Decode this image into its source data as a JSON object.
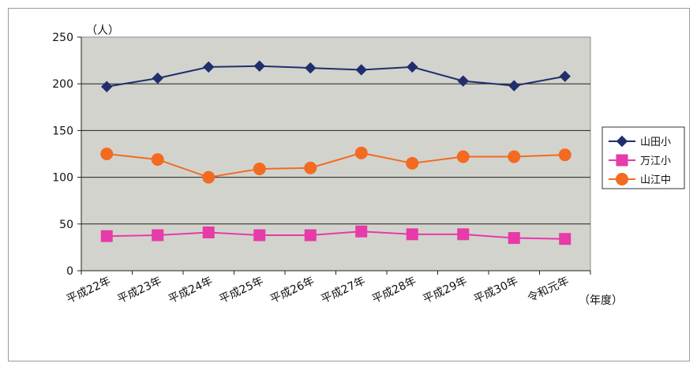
{
  "chart_data": {
    "type": "line",
    "y_unit": "（人）",
    "x_unit": "（年度）",
    "categories": [
      "平成22年",
      "平成23年",
      "平成24年",
      "平成25年",
      "平成26年",
      "平成27年",
      "平成28年",
      "平成29年",
      "平成30年",
      "令和元年"
    ],
    "ylim": [
      0,
      250
    ],
    "yticks": [
      0,
      50,
      100,
      150,
      200,
      250
    ],
    "grid": true,
    "legend_position": "right",
    "series": [
      {
        "name": "山田小",
        "color": "#1f2f6e",
        "marker": "diamond",
        "values": [
          197,
          206,
          218,
          219,
          217,
          215,
          218,
          203,
          198,
          208
        ]
      },
      {
        "name": "万江小",
        "color": "#e63ba8",
        "marker": "square",
        "values": [
          37,
          38,
          41,
          38,
          38,
          42,
          39,
          39,
          35,
          34
        ]
      },
      {
        "name": "山江中",
        "color": "#f26b21",
        "marker": "circle",
        "values": [
          125,
          119,
          100,
          109,
          110,
          126,
          115,
          122,
          122,
          124
        ]
      }
    ]
  }
}
